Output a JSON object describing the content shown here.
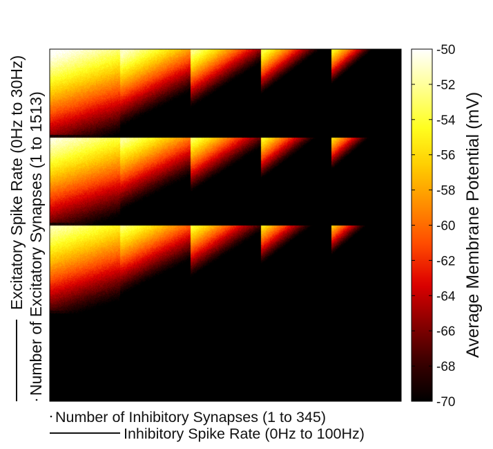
{
  "chart_data": {
    "type": "heatmap",
    "description_rows": 4,
    "description_cols": 5,
    "x_axis": {
      "label_primary": "Number of Inhibitory Synapses (1 to 345)",
      "label_secondary": "Inhibitory Spike Rate (0Hz to 100Hz)"
    },
    "y_axis": {
      "label_primary": "Excitatory Spike Rate (0Hz to 30Hz)",
      "label_secondary": "Number of Excitatory Synapses (1 to 1513)"
    },
    "colorbar": {
      "label": "Average Membrane Potential (mV)",
      "vmin": -70,
      "vmax": -50,
      "ticks": [
        -50,
        -52,
        -54,
        -56,
        -58,
        -60,
        -62,
        -64,
        -66,
        -68,
        -70
      ],
      "tick_labels": [
        "-50",
        "-52",
        "-54",
        "-56",
        "-58",
        "-60",
        "-62",
        "-64",
        "-66",
        "-68",
        "-70"
      ],
      "colormap": [
        "#000000",
        "#3a0000",
        "#8a0000",
        "#dd0000",
        "#ff4a00",
        "#ff8c00",
        "#ffcc00",
        "#ffff20",
        "#ffff90",
        "#ffffff"
      ]
    },
    "block_grid": {
      "rows": [
        "top",
        "upper-middle",
        "lower-middle",
        "bottom"
      ],
      "cols": [
        "block-1",
        "block-2",
        "block-3",
        "block-4",
        "block-5"
      ],
      "bottom_row_value_mV": -70,
      "boundary_value_mV": -70
    }
  }
}
